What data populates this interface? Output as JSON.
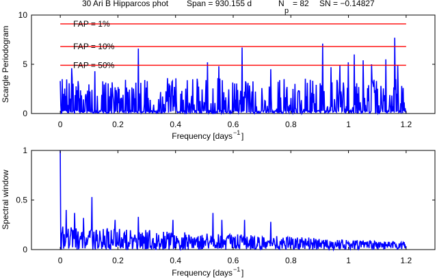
{
  "chart_data": [
    {
      "type": "line",
      "title_parts": {
        "name": "30 Ari B Hipparcos phot",
        "span": "Span = 930.155 d",
        "np_prefix": "N",
        "np_sub": "p",
        "np_value": "= 82",
        "sn": "SN = −0.14827"
      },
      "xlabel": "Frequency [days",
      "xlabel_sup": "−1",
      "xlabel_end": "]",
      "ylabel": "Scargle Periodogram",
      "xlim": [
        -0.1,
        1.3
      ],
      "ylim": [
        0,
        10
      ],
      "xticks": [
        0,
        0.2,
        0.4,
        0.6,
        0.8,
        1,
        1.2
      ],
      "xtick_labels": [
        "0",
        "0.2",
        "0.4",
        "0.6",
        "0.8",
        "1",
        "1.2"
      ],
      "yticks": [
        0,
        5,
        10
      ],
      "ytick_labels": [
        "0",
        "5",
        "10"
      ],
      "fap_lines": [
        {
          "label": "FAP = 1%",
          "value": 9.1
        },
        {
          "label": "FAP = 10%",
          "value": 6.8
        },
        {
          "label": "FAP = 50%",
          "value": 4.9
        }
      ],
      "fap_color": "#ff0000",
      "line_color": "#0000ff",
      "series": {
        "x_range": [
          0,
          1.2
        ],
        "noise_base": 1.4,
        "peaks": [
          {
            "x": 0.0,
            "y": 3.3
          },
          {
            "x": 0.04,
            "y": 4.6
          },
          {
            "x": 0.12,
            "y": 4.3
          },
          {
            "x": 0.27,
            "y": 6.6
          },
          {
            "x": 0.51,
            "y": 5.2
          },
          {
            "x": 0.55,
            "y": 4.8
          },
          {
            "x": 0.63,
            "y": 6.7
          },
          {
            "x": 0.73,
            "y": 4.5
          },
          {
            "x": 0.91,
            "y": 7.1
          },
          {
            "x": 0.94,
            "y": 4.7
          },
          {
            "x": 0.97,
            "y": 4.9
          },
          {
            "x": 1.0,
            "y": 5.2
          },
          {
            "x": 1.02,
            "y": 6.0
          },
          {
            "x": 1.05,
            "y": 5.4
          },
          {
            "x": 1.08,
            "y": 5.0
          },
          {
            "x": 1.13,
            "y": 5.5
          },
          {
            "x": 1.16,
            "y": 7.7
          },
          {
            "x": 1.17,
            "y": 4.9
          }
        ]
      }
    },
    {
      "type": "line",
      "xlabel": "Frequency [days",
      "xlabel_sup": "−1",
      "xlabel_end": "]",
      "ylabel": "Spectral window",
      "xlim": [
        -0.1,
        1.3
      ],
      "ylim": [
        0,
        1
      ],
      "xticks": [
        0,
        0.2,
        0.4,
        0.6,
        0.8,
        1,
        1.2
      ],
      "xtick_labels": [
        "0",
        "0.2",
        "0.4",
        "0.6",
        "0.8",
        "1",
        "1.2"
      ],
      "yticks": [
        0,
        0.5,
        1
      ],
      "ytick_labels": [
        "0",
        "0.5",
        "1"
      ],
      "line_color": "#0000ff",
      "series": {
        "x_range": [
          0,
          1.2
        ],
        "peaks": [
          {
            "x": 0.0,
            "y": 1.0
          },
          {
            "x": 0.02,
            "y": 0.4
          },
          {
            "x": 0.05,
            "y": 0.37
          },
          {
            "x": 0.08,
            "y": 0.32
          },
          {
            "x": 0.11,
            "y": 0.53
          },
          {
            "x": 0.19,
            "y": 0.3
          },
          {
            "x": 0.27,
            "y": 0.33
          },
          {
            "x": 0.39,
            "y": 0.3
          },
          {
            "x": 0.53,
            "y": 0.37
          },
          {
            "x": 0.56,
            "y": 0.3
          },
          {
            "x": 0.64,
            "y": 0.3
          },
          {
            "x": 0.73,
            "y": 0.28
          }
        ]
      }
    }
  ]
}
